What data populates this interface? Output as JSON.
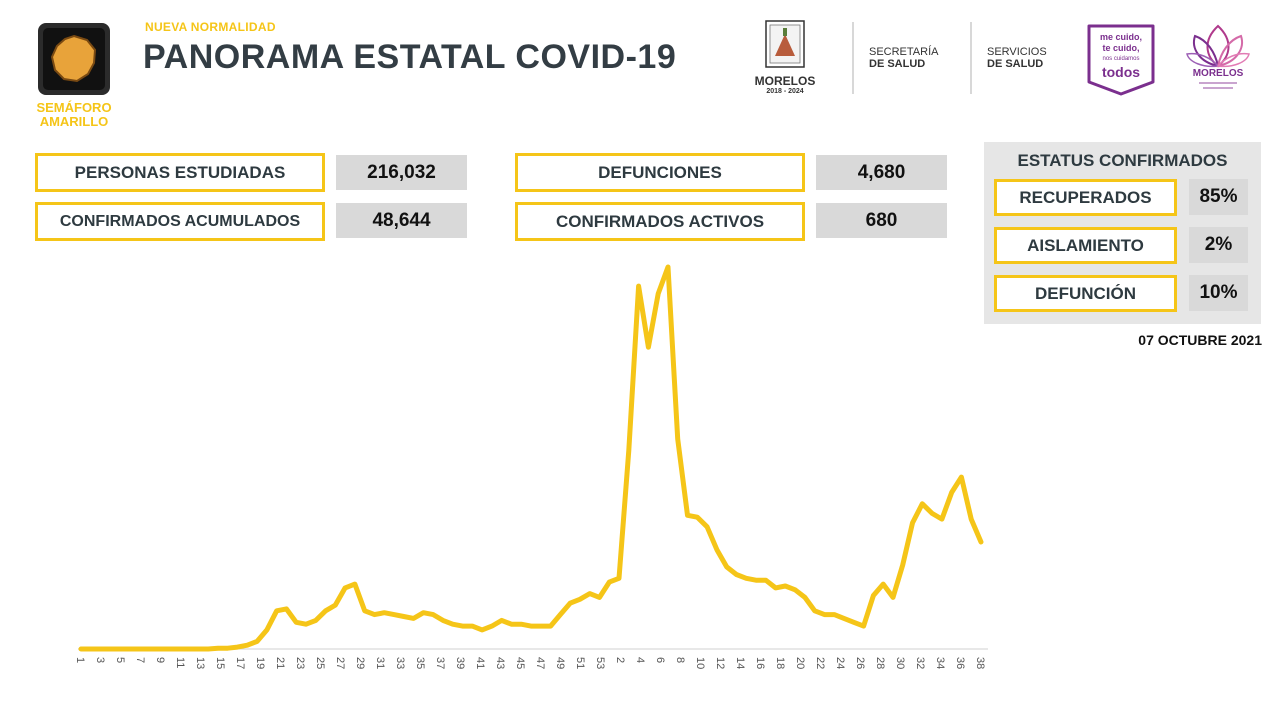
{
  "header": {
    "subtitle": "NUEVA NORMALIDAD",
    "title": "PANORAMA ESTATAL COVID-19",
    "semaforo_line1": "SEMÁFORO",
    "semaforo_line2": "AMARILLO",
    "morelos_name": "MORELOS",
    "morelos_years": "2018 - 2024",
    "secretaria_line1": "SECRETARÍA",
    "secretaria_line2": "DE SALUD",
    "servicios_line1": "SERVICIOS",
    "servicios_line2": "DE SALUD",
    "campaign_line1": "me cuido,",
    "campaign_line2": "te cuido,",
    "campaign_line3": "nos cuidamos",
    "campaign_line4": "todos",
    "lotus_name": "MORELOS"
  },
  "stats": {
    "personas_estudiadas_label": "PERSONAS ESTUDIADAS",
    "personas_estudiadas_value": "216,032",
    "confirmados_acumulados_label": "CONFIRMADOS ACUMULADOS",
    "confirmados_acumulados_value": "48,644",
    "defunciones_label": "DEFUNCIONES",
    "defunciones_value": "4,680",
    "confirmados_activos_label": "CONFIRMADOS ACTIVOS",
    "confirmados_activos_value": "680"
  },
  "status": {
    "title": "ESTATUS CONFIRMADOS",
    "recuperados_label": "RECUPERADOS",
    "recuperados_value": "85%",
    "aislamiento_label": "AISLAMIENTO",
    "aislamiento_value": "2%",
    "defuncion_label": "DEFUNCIÓN",
    "defuncion_value": "10%"
  },
  "report_date": "07 OCTUBRE 2021",
  "colors": {
    "accent": "#f5c518",
    "title_text": "#333d44",
    "value_box": "#d9d9d9",
    "status_panel": "#e6e6e6",
    "purple": "#7b2f8e"
  },
  "chart_data": {
    "type": "line",
    "title": "",
    "xlabel": "",
    "ylabel": "",
    "grid": false,
    "legend": "none",
    "series_color": "#f5c518",
    "x_tick_labels": [
      "1",
      "3",
      "5",
      "7",
      "9",
      "11",
      "13",
      "15",
      "17",
      "19",
      "21",
      "23",
      "25",
      "27",
      "29",
      "31",
      "33",
      "35",
      "37",
      "39",
      "41",
      "43",
      "45",
      "47",
      "49",
      "51",
      "53",
      "2",
      "4",
      "6",
      "8",
      "10",
      "12",
      "14",
      "16",
      "18",
      "20",
      "22",
      "24",
      "26",
      "28",
      "30",
      "32",
      "34",
      "36",
      "38"
    ],
    "ylim": [
      0,
      100
    ],
    "values": [
      0,
      0,
      0,
      0,
      0,
      0,
      0,
      0,
      0,
      0,
      0,
      0,
      0,
      0,
      0.2,
      0.2,
      0.5,
      1,
      2,
      5,
      10,
      10.5,
      7,
      6.5,
      7.5,
      10,
      11.5,
      16,
      17,
      10,
      9,
      9.5,
      9,
      8.5,
      8,
      9.5,
      9,
      7.5,
      6.5,
      6,
      6,
      5,
      6,
      7.5,
      6.5,
      6.5,
      6,
      6,
      6,
      9,
      12,
      13,
      14.5,
      13.5,
      17.5,
      18.5,
      52,
      95,
      79,
      93,
      100,
      55,
      35,
      34.5,
      32,
      26,
      21.5,
      19.5,
      18.5,
      18,
      18,
      16,
      16.5,
      15.5,
      13.5,
      10,
      9,
      9,
      8,
      7,
      6,
      14,
      17,
      13.5,
      22,
      33,
      38,
      35.5,
      34,
      41,
      45,
      34,
      28
    ]
  }
}
